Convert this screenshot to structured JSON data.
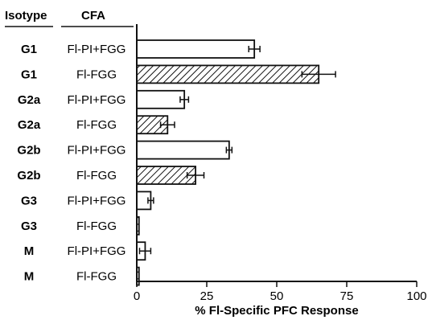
{
  "headers": {
    "isotype": "Isotype",
    "cfa": "CFA"
  },
  "chart_data": {
    "type": "bar",
    "orientation": "horizontal",
    "xlabel": "% Fl-Specific PFC Response",
    "ylabel": "",
    "xlim": [
      0,
      100
    ],
    "xticks": [
      0,
      25,
      50,
      75,
      100
    ],
    "xtick_labels": [
      "0",
      "25",
      "50",
      "75",
      "100"
    ],
    "rows": [
      {
        "isotype": "G1",
        "cfa": "Fl-PI+FGG",
        "value": 42,
        "error": 2,
        "pattern": "open"
      },
      {
        "isotype": "G1",
        "cfa": "Fl-FGG",
        "value": 65,
        "error": 6,
        "pattern": "hatched"
      },
      {
        "isotype": "G2a",
        "cfa": "Fl-PI+FGG",
        "value": 17,
        "error": 1.5,
        "pattern": "open"
      },
      {
        "isotype": "G2a",
        "cfa": "Fl-FGG",
        "value": 11,
        "error": 2.5,
        "pattern": "hatched"
      },
      {
        "isotype": "G2b",
        "cfa": "Fl-PI+FGG",
        "value": 33,
        "error": 1,
        "pattern": "open"
      },
      {
        "isotype": "G2b",
        "cfa": "Fl-FGG",
        "value": 21,
        "error": 3,
        "pattern": "hatched"
      },
      {
        "isotype": "G3",
        "cfa": "Fl-PI+FGG",
        "value": 5,
        "error": 1,
        "pattern": "open"
      },
      {
        "isotype": "G3",
        "cfa": "Fl-FGG",
        "value": 0.8,
        "error": 0,
        "pattern": "hatched"
      },
      {
        "isotype": "M",
        "cfa": "Fl-PI+FGG",
        "value": 3,
        "error": 2,
        "pattern": "open"
      },
      {
        "isotype": "M",
        "cfa": "Fl-FGG",
        "value": 0.8,
        "error": 0,
        "pattern": "hatched"
      }
    ]
  }
}
